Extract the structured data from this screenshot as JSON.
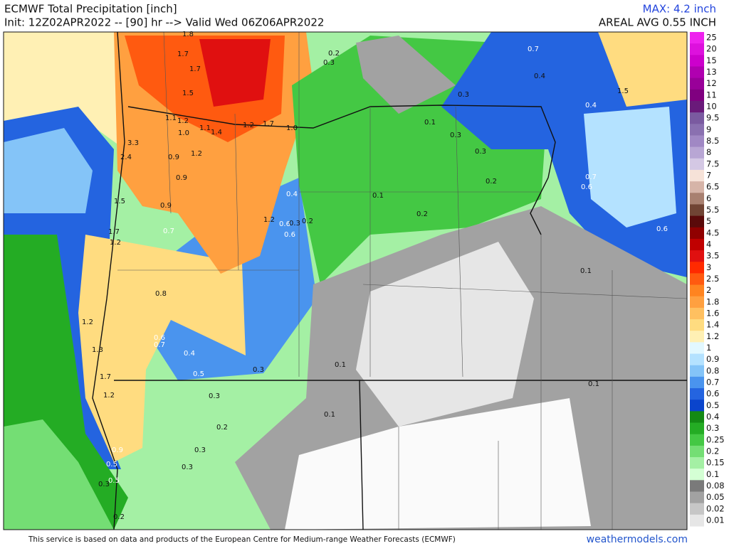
{
  "header": {
    "title": "ECMWF Total Precipitation [inch]",
    "subtitle": "Init: 12Z02APR2022 -- [90] hr --> Valid Wed 06Z06APR2022",
    "max": "MAX: 4.2 inch",
    "areal_avg": "AREAL AVG 0.55 INCH"
  },
  "colorbar": [
    {
      "label": "25",
      "color": "#ee22ee"
    },
    {
      "label": "20",
      "color": "#dd11dd"
    },
    {
      "label": "15",
      "color": "#cc00cc"
    },
    {
      "label": "13",
      "color": "#b000b0"
    },
    {
      "label": "12",
      "color": "#990099"
    },
    {
      "label": "11",
      "color": "#800080"
    },
    {
      "label": "10",
      "color": "#6a1a7a"
    },
    {
      "label": "9.5",
      "color": "#7a5aa0"
    },
    {
      "label": "9",
      "color": "#8a70b0"
    },
    {
      "label": "8.5",
      "color": "#a088c4"
    },
    {
      "label": "8",
      "color": "#b8a6d4"
    },
    {
      "label": "7.5",
      "color": "#d4c8e4"
    },
    {
      "label": "7",
      "color": "#f6e2d8"
    },
    {
      "label": "6.5",
      "color": "#d6b4a8"
    },
    {
      "label": "6",
      "color": "#a88070"
    },
    {
      "label": "5.5",
      "color": "#704434"
    },
    {
      "label": "5",
      "color": "#5a0a0a"
    },
    {
      "label": "4.5",
      "color": "#900000"
    },
    {
      "label": "4",
      "color": "#c00000"
    },
    {
      "label": "3.5",
      "color": "#e01010"
    },
    {
      "label": "3",
      "color": "#ff2a00"
    },
    {
      "label": "2.5",
      "color": "#ff5a10"
    },
    {
      "label": "2",
      "color": "#ff8420"
    },
    {
      "label": "1.8",
      "color": "#ffa040"
    },
    {
      "label": "1.6",
      "color": "#ffc060"
    },
    {
      "label": "1.4",
      "color": "#ffdc80"
    },
    {
      "label": "1.2",
      "color": "#fff0b4"
    },
    {
      "label": "1",
      "color": "#e2f8ff"
    },
    {
      "label": "0.9",
      "color": "#b4e2ff"
    },
    {
      "label": "0.8",
      "color": "#84c4f8"
    },
    {
      "label": "0.7",
      "color": "#4a94ee"
    },
    {
      "label": "0.6",
      "color": "#2464e0"
    },
    {
      "label": "0.5",
      "color": "#0a44cc"
    },
    {
      "label": "0.4",
      "color": "#148a14"
    },
    {
      "label": "0.3",
      "color": "#24ac24"
    },
    {
      "label": "0.25",
      "color": "#44c844"
    },
    {
      "label": "0.2",
      "color": "#74de74"
    },
    {
      "label": "0.15",
      "color": "#a4f0a4"
    },
    {
      "label": "0.1",
      "color": "#d4ffd4"
    },
    {
      "label": "0.08",
      "color": "#7a7a7a"
    },
    {
      "label": "0.05",
      "color": "#a2a2a2"
    },
    {
      "label": "0.02",
      "color": "#c6c6c6"
    },
    {
      "label": "0.01",
      "color": "#e6e6e6"
    }
  ],
  "map_labels": [
    "1.8",
    "1.7",
    "1.7",
    "1.5",
    "1.1",
    "1.2",
    "1.0",
    "1.1",
    "1.4",
    "1.2",
    "1.7",
    "1.0",
    "3.3",
    "2.4",
    "0.9",
    "1.2",
    "0.9",
    "1.5",
    "0.9",
    "0.7",
    "1.7",
    "1.2",
    "1.2",
    "0.6",
    "0.3",
    "0.2",
    "0.6",
    "0.4",
    "0.8",
    "1.2",
    "1.3",
    "1.7",
    "1.2",
    "0.6",
    "0.7",
    "0.4",
    "0.5",
    "0.3",
    "0.1",
    "0.3",
    "0.1",
    "0.2",
    "0.3",
    "0.3",
    "0.9",
    "0.5",
    "0.5",
    "0.3",
    "0.2",
    "0.2",
    "0.3",
    "0.7",
    "0.4",
    "0.3",
    "1.5",
    "0.4",
    "0.1",
    "0.3",
    "0.3",
    "0.2",
    "0.7",
    "0.6",
    "0.1",
    "0.2",
    "0.6",
    "0.1",
    "0.1"
  ],
  "footer": {
    "credit": "This service is based on data and products of the European Centre for Medium-range Weather Forecasts (ECMWF)",
    "site": "weathermodels.com"
  }
}
